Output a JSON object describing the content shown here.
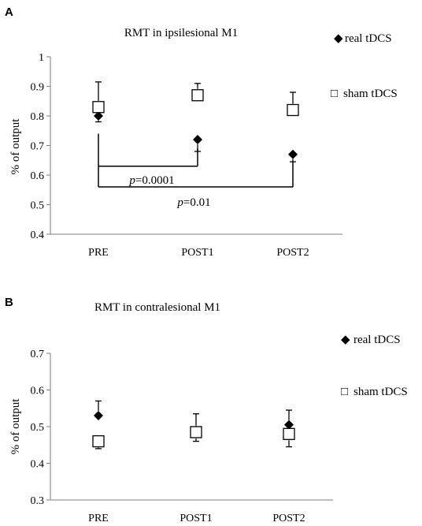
{
  "chart_data": [
    {
      "panel": "A",
      "type": "scatter",
      "title": "RMT in ipsilesional M1",
      "ylabel": "% of output",
      "xlabel": "",
      "categories": [
        "PRE",
        "POST1",
        "POST2"
      ],
      "ylim": [
        0.4,
        1
      ],
      "yticks": [
        "0.4",
        "0.5",
        "0.6",
        "0.7",
        "0.8",
        "0.9",
        "1"
      ],
      "legend_position": "right",
      "series": [
        {
          "name": "real tDCS",
          "marker": "diamond",
          "marker_glyph": "◆",
          "values": [
            0.8,
            0.72,
            0.67
          ],
          "errors": [
            0.02,
            0.04,
            0.025
          ],
          "error_direction": "down"
        },
        {
          "name": "sham tDCS",
          "marker": "square",
          "marker_glyph": "□",
          "values": [
            0.83,
            0.87,
            0.82
          ],
          "errors": [
            0.085,
            0.04,
            0.06
          ],
          "error_direction": "up"
        }
      ],
      "annotations": [
        {
          "label_prefix": "p",
          "label_value": "=0.0001",
          "from": "PRE",
          "to": "POST1",
          "y": 0.63
        },
        {
          "label_prefix": "p",
          "label_value": "=0.01",
          "from": "PRE",
          "to": "POST2",
          "y": 0.56
        }
      ]
    },
    {
      "panel": "B",
      "type": "scatter",
      "title": "RMT in contralesional  M1",
      "ylabel": "% of output",
      "xlabel": "",
      "categories": [
        "PRE",
        "POST1",
        "POST2"
      ],
      "ylim": [
        0.3,
        0.7
      ],
      "yticks": [
        "0.3",
        "0.4",
        "0.5",
        "0.6",
        "0.7"
      ],
      "legend_position": "right",
      "series": [
        {
          "name": "real tDCS",
          "marker": "diamond",
          "marker_glyph": "◆",
          "values": [
            0.53,
            0.49,
            0.505
          ],
          "errors": [
            0.04,
            0.045,
            0.04
          ],
          "error_direction": "up"
        },
        {
          "name": "sham tDCS",
          "marker": "square",
          "marker_glyph": "□",
          "values": [
            0.46,
            0.485,
            0.48
          ],
          "errors": [
            0.02,
            0.025,
            0.035
          ],
          "error_direction": "down"
        }
      ]
    }
  ]
}
